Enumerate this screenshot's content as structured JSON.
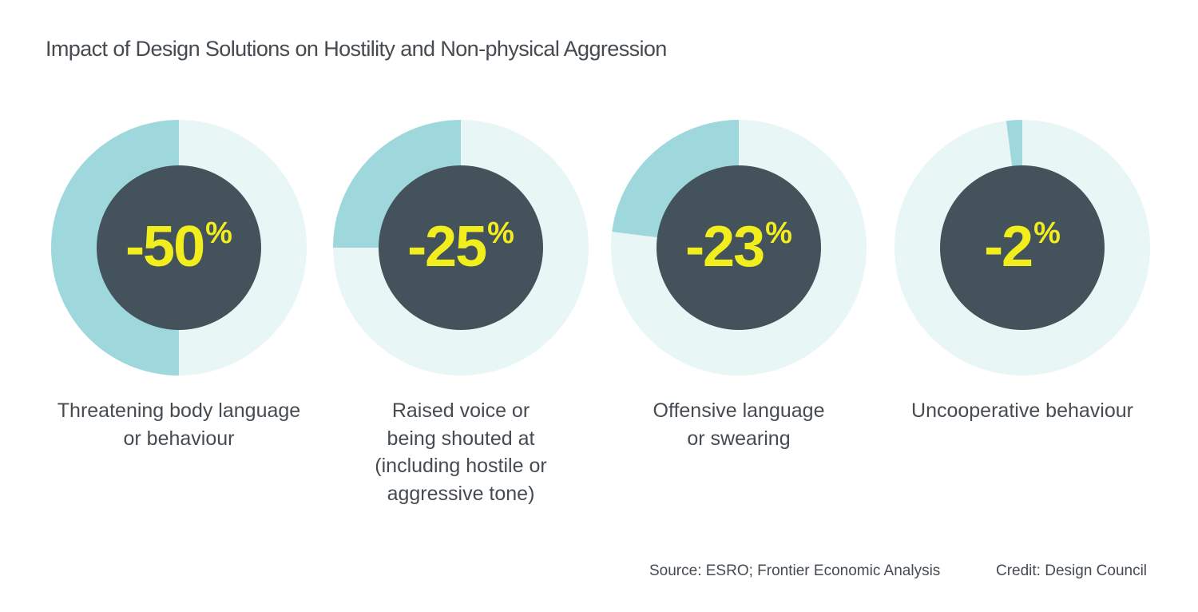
{
  "title": "Impact of Design Solutions on Hostility and Non-physical Aggression",
  "colors": {
    "highlight": "#9fd8dc",
    "track": "#e8f6f6",
    "center": "#44525c",
    "value_text": "#f2ee1e"
  },
  "chart_data": {
    "type": "pie",
    "title": "Impact of Design Solutions on Hostility and Non-physical Aggression",
    "unit": "%",
    "series": [
      {
        "label": [
          "Threatening body language",
          "or behaviour"
        ],
        "value": -50,
        "display": "-50"
      },
      {
        "label": [
          "Raised voice or",
          "being shouted at",
          "(including hostile or",
          "aggressive tone)"
        ],
        "value": -25,
        "display": "-25"
      },
      {
        "label": [
          "Offensive language",
          "or swearing"
        ],
        "value": -23,
        "display": "-23"
      },
      {
        "label": [
          "Uncooperative behaviour"
        ],
        "value": -2,
        "display": "-2"
      }
    ]
  },
  "footer": {
    "source": "Source: ESRO; Frontier Economic Analysis",
    "credit": "Credit: Design Council"
  }
}
